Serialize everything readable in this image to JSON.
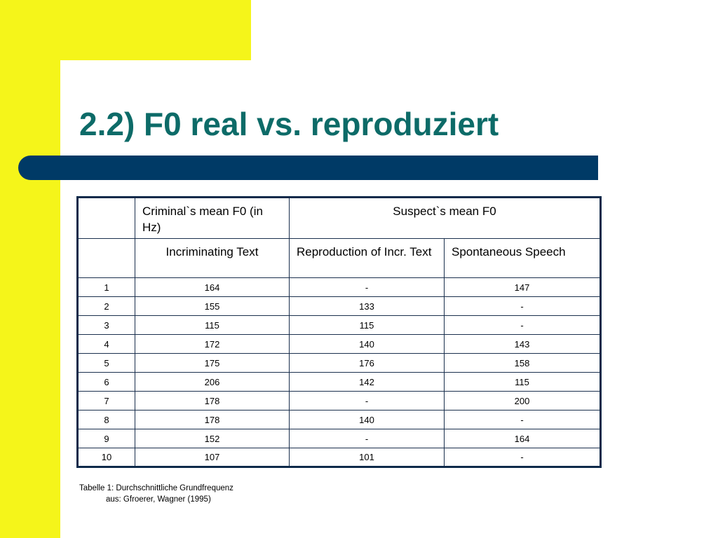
{
  "slide": {
    "title": "2.2) F0 real vs. reproduziert",
    "accent_yellow": "#f5f51a",
    "title_color": "#0d6b68",
    "rule_color": "#003a66"
  },
  "table": {
    "header_row1": {
      "col0": "",
      "col1": "Criminal`s mean F0 (in Hz)",
      "col2_span": "Suspect`s mean F0"
    },
    "header_row2": {
      "col0": "",
      "col1": "Incriminating Text",
      "col2": "Reproduction of Incr. Text",
      "col3": "Spontaneous Speech"
    },
    "rows": [
      [
        "1",
        "164",
        "-",
        "147"
      ],
      [
        "2",
        "155",
        "133",
        "-"
      ],
      [
        "3",
        "115",
        "115",
        "-"
      ],
      [
        "4",
        "172",
        "140",
        "143"
      ],
      [
        "5",
        "175",
        "176",
        "158"
      ],
      [
        "6",
        "206",
        "142",
        "115"
      ],
      [
        "7",
        "178",
        "-",
        "200"
      ],
      [
        "8",
        "178",
        "140",
        "-"
      ],
      [
        "9",
        "152",
        "-",
        "164"
      ],
      [
        "10",
        "107",
        "101",
        "-"
      ]
    ]
  },
  "caption": {
    "line1": "Tabelle 1: Durchschnittliche Grundfrequenz",
    "line2": "aus: Gfroerer, Wagner (1995)"
  }
}
